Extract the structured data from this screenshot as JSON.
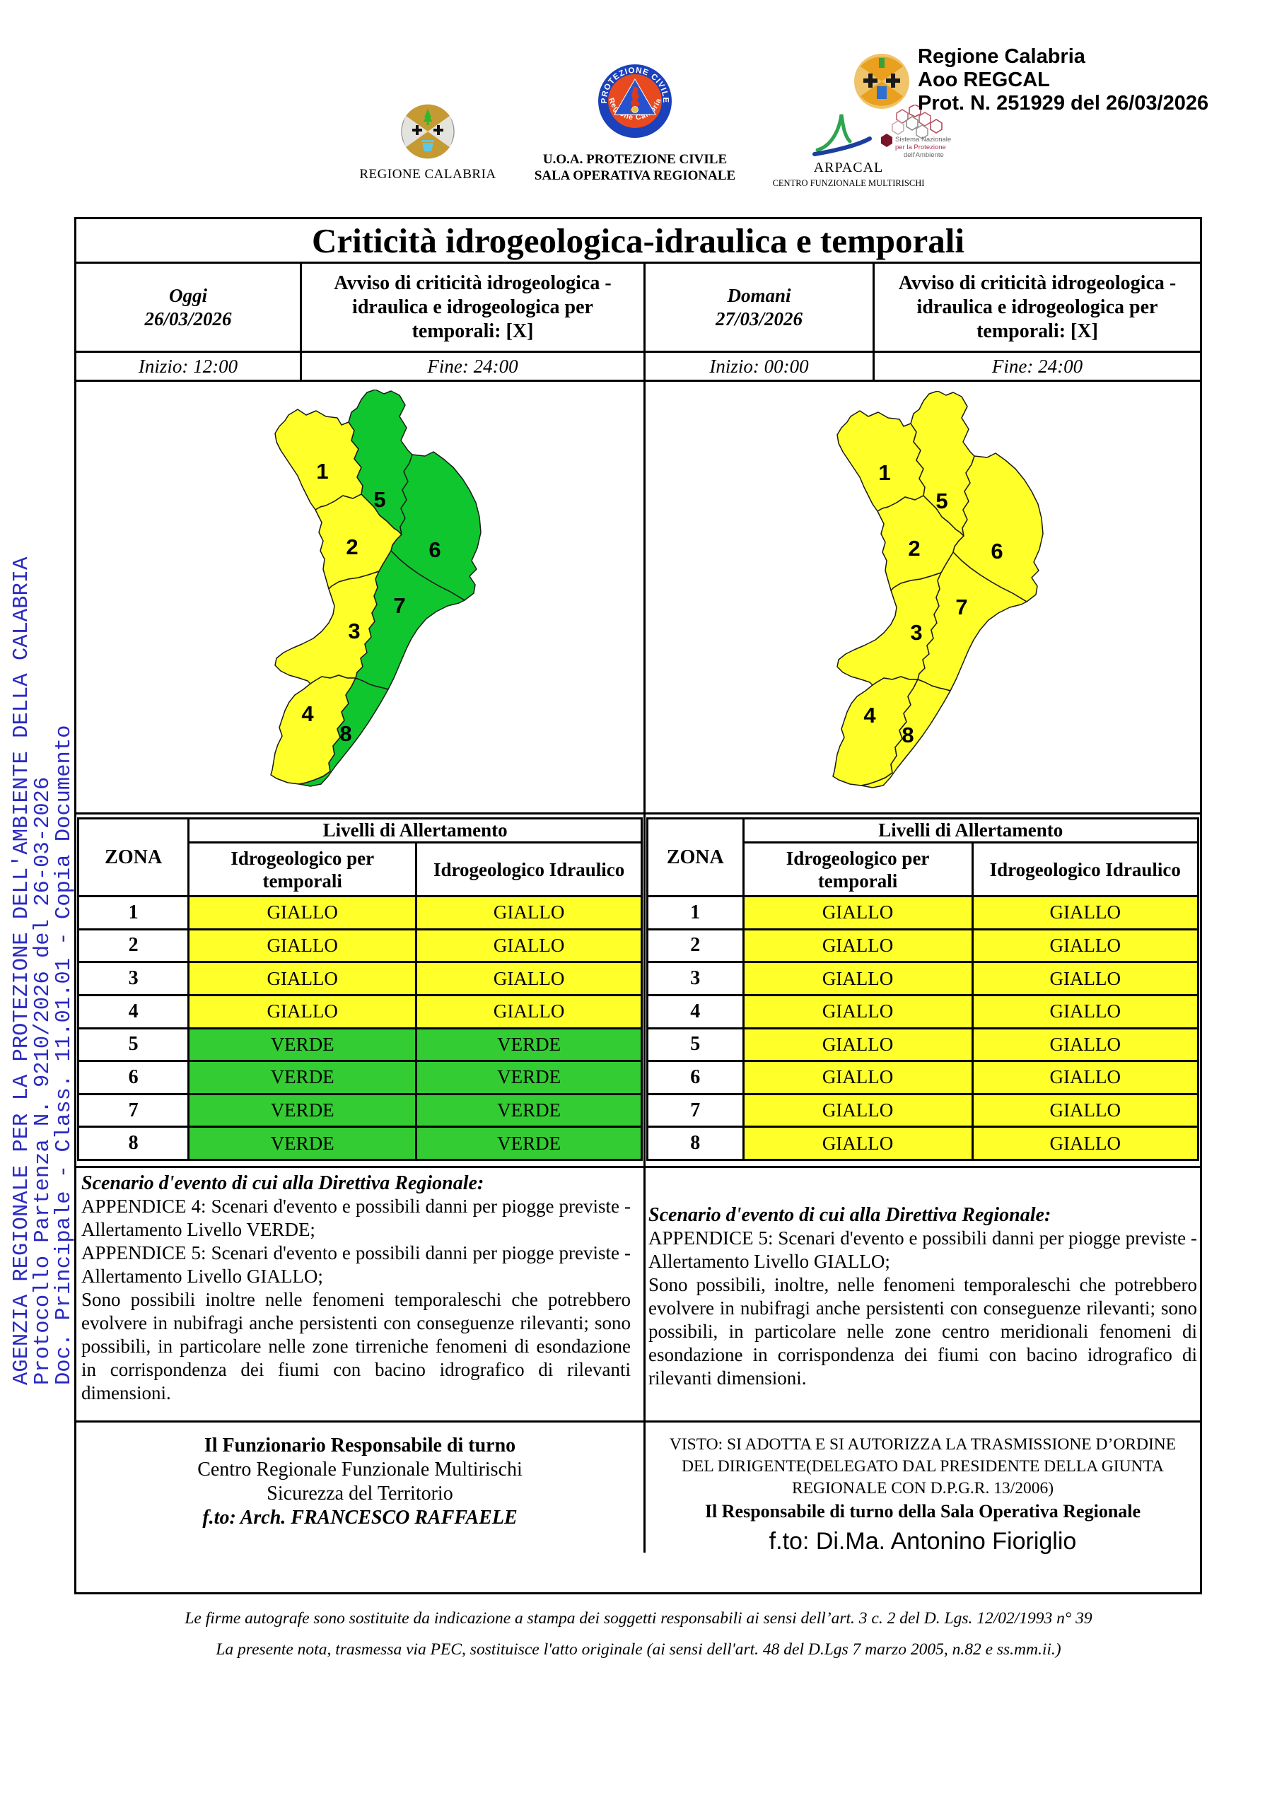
{
  "sidebar": {
    "color": "#2a2ac2",
    "line1": "AGENZIA REGIONALE PER LA PROTEZIONE DELL'AMBIENTE DELLA CALABRIA",
    "line2": "Protocollo Partenza N. 9210/2026 del 26-03-2026",
    "line3": "Doc. Principale - Class. 11.01.01 - Copia Documento"
  },
  "header": {
    "regione_logo_caption": "REGIONE CALABRIA",
    "pc_logo_arc_top": "PROTEZIONE CIVILE",
    "pc_logo_arc_bottom": "Regione Calabria",
    "pc_caption_line1": "U.O.A. PROTEZIONE CIVILE",
    "pc_caption_line2": "SALA OPERATIVA REGIONALE",
    "arpacal_caption_line1": "ARPACAL",
    "arpacal_caption_line2": "CENTRO FUNZIONALE MULTIRISCHI",
    "snpa_caption_line1": "Sistema Nazionale",
    "snpa_caption_line2": "per la Protezione",
    "snpa_caption_line3": "dell'Ambiente",
    "protocol_line1": "Regione Calabria",
    "protocol_line2": "Aoo REGCAL",
    "protocol_line3": "Prot. N. 251929 del 26/03/2026"
  },
  "document": {
    "title": "Criticità idrogeologica-idraulica e temporali",
    "today_label": "Oggi",
    "today_date": "26/03/2026",
    "today_notice": "Avviso di criticità idrogeologica - idraulica e idrogeologica per temporali: [X]",
    "today_start": "Inizio: 12:00",
    "today_end": "Fine: 24:00",
    "tomorrow_label": "Domani",
    "tomorrow_date": "27/03/2026",
    "tomorrow_notice": "Avviso di criticità idrogeologica - idraulica e idrogeologica per temporali: [X]",
    "tomorrow_start": "Inizio: 00:00",
    "tomorrow_end": "Fine: 24:00"
  },
  "maps": {
    "zone_labels": [
      "1",
      "2",
      "3",
      "4",
      "5",
      "6",
      "7",
      "8"
    ],
    "level_colors": {
      "GIALLO": "#ffff2a",
      "VERDE": "#0fc62e"
    },
    "today_zone_levels": {
      "1": "GIALLO",
      "2": "GIALLO",
      "3": "GIALLO",
      "4": "GIALLO",
      "5": "VERDE",
      "6": "VERDE",
      "7": "VERDE",
      "8": "VERDE"
    },
    "tomorrow_zone_levels": {
      "1": "GIALLO",
      "2": "GIALLO",
      "3": "GIALLO",
      "4": "GIALLO",
      "5": "GIALLO",
      "6": "GIALLO",
      "7": "GIALLO",
      "8": "GIALLO"
    }
  },
  "alert_table": {
    "zona_header": "ZONA",
    "levels_header": "Livelli di Allertamento",
    "col_temporali": "Idrogeologico per temporali",
    "col_idraulico": "Idrogeologico Idraulico",
    "cell_colors": {
      "GIALLO": "#ffff2a",
      "VERDE": "#33cc33"
    },
    "today_rows": [
      {
        "zona": "1",
        "temporali": "GIALLO",
        "idraulico": "GIALLO"
      },
      {
        "zona": "2",
        "temporali": "GIALLO",
        "idraulico": "GIALLO"
      },
      {
        "zona": "3",
        "temporali": "GIALLO",
        "idraulico": "GIALLO"
      },
      {
        "zona": "4",
        "temporali": "GIALLO",
        "idraulico": "GIALLO"
      },
      {
        "zona": "5",
        "temporali": "VERDE",
        "idraulico": "VERDE"
      },
      {
        "zona": "6",
        "temporali": "VERDE",
        "idraulico": "VERDE"
      },
      {
        "zona": "7",
        "temporali": "VERDE",
        "idraulico": "VERDE"
      },
      {
        "zona": "8",
        "temporali": "VERDE",
        "idraulico": "VERDE"
      }
    ],
    "tomorrow_rows": [
      {
        "zona": "1",
        "temporali": "GIALLO",
        "idraulico": "GIALLO"
      },
      {
        "zona": "2",
        "temporali": "GIALLO",
        "idraulico": "GIALLO"
      },
      {
        "zona": "3",
        "temporali": "GIALLO",
        "idraulico": "GIALLO"
      },
      {
        "zona": "4",
        "temporali": "GIALLO",
        "idraulico": "GIALLO"
      },
      {
        "zona": "5",
        "temporali": "GIALLO",
        "idraulico": "GIALLO"
      },
      {
        "zona": "6",
        "temporali": "GIALLO",
        "idraulico": "GIALLO"
      },
      {
        "zona": "7",
        "temporali": "GIALLO",
        "idraulico": "GIALLO"
      },
      {
        "zona": "8",
        "temporali": "GIALLO",
        "idraulico": "GIALLO"
      }
    ]
  },
  "scenario": {
    "title": "Scenario d'evento di cui alla Direttiva Regionale:",
    "today_p1": "APPENDICE 4: Scenari d'evento e possibili danni per piogge previste - Allertamento Livello VERDE;",
    "today_p2": "APPENDICE 5: Scenari d'evento e possibili danni per piogge previste - Allertamento Livello GIALLO;",
    "today_p3": "Sono possibili inoltre nelle fenomeni temporaleschi che potrebbero evolvere in nubifragi anche persistenti con conseguenze rilevanti; sono possibili, in particolare nelle zone tirreniche fenomeni di esondazione in corrispondenza dei fiumi con bacino idrografico di rilevanti dimensioni.",
    "tomorrow_p1": "APPENDICE 5: Scenari d'evento e possibili danni per piogge previste - Allertamento Livello GIALLO;",
    "tomorrow_p2": "Sono possibili, inoltre, nelle fenomeni temporaleschi che potrebbero evolvere in nubifragi anche persistenti con conseguenze rilevanti; sono possibili, in particolare nelle zone centro meridionali fenomeni di esondazione in corrispondenza dei fiumi con bacino idrografico di rilevanti dimensioni."
  },
  "signatures": {
    "left_line1": "Il Funzionario Responsabile di turno",
    "left_line2": "Centro Regionale Funzionale Multirischi",
    "left_line3": "Sicurezza del Territorio",
    "left_line4": "f.to: Arch. FRANCESCO RAFFAELE",
    "right_visto": "VISTO: SI ADOTTA E SI AUTORIZZA LA TRASMISSIONE D’ORDINE DEL DIRIGENTE(DELEGATO DAL PRESIDENTE DELLA GIUNTA REGIONALE CON D.P.G.R. 13/2006)",
    "right_role": "Il Responsabile di turno della Sala Operativa Regionale",
    "right_signed": "f.to: Di.Ma. Antonino Fioriglio"
  },
  "footnotes": {
    "line1": "Le firme autografe sono sostituite da indicazione a stampa dei soggetti responsabili ai sensi dell’art. 3 c. 2 del D. Lgs. 12/02/1993 n° 39",
    "line2": "La presente nota, trasmessa via PEC, sostituisce l'atto originale (ai sensi dell'art. 48 del D.Lgs 7 marzo 2005, n.82 e ss.mm.ii.)"
  }
}
